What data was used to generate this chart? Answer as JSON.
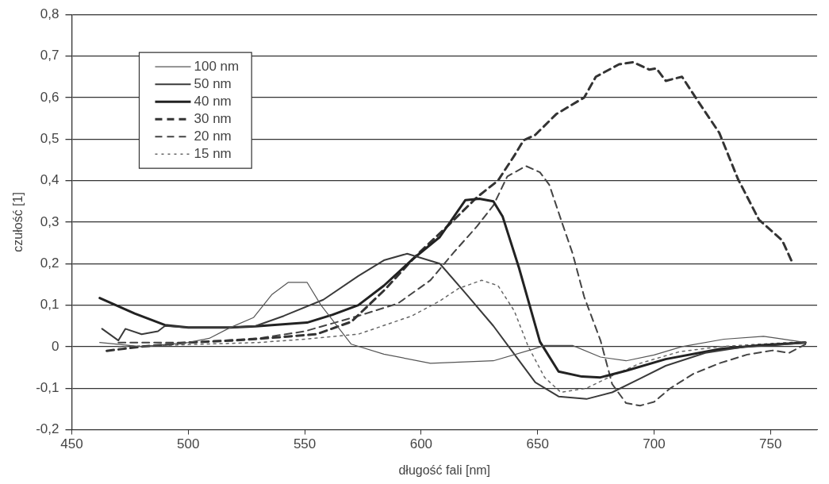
{
  "chart_data": {
    "type": "line",
    "xlabel": "długość fali [nm]",
    "ylabel": "czułość [1]",
    "xlim": [
      450,
      770
    ],
    "xticks": [
      450,
      500,
      550,
      600,
      650,
      700,
      750
    ],
    "ylim": [
      -0.2,
      0.8
    ],
    "yticks": [
      {
        "value": -0.2,
        "label": "-0,2"
      },
      {
        "value": -0.1,
        "label": "-0,1"
      },
      0,
      {
        "value": 0.1,
        "label": "0,1"
      },
      {
        "value": 0.2,
        "label": "0,2"
      },
      {
        "value": 0.3,
        "label": "0,3"
      },
      {
        "value": 0.4,
        "label": "0,4"
      },
      {
        "value": 0.5,
        "label": "0,5"
      },
      {
        "value": 0.6,
        "label": "0,6"
      },
      {
        "value": 0.7,
        "label": "0,7"
      },
      {
        "value": 0.8,
        "label": "0,8"
      }
    ],
    "grid": "y",
    "legend": "top left",
    "marker": "none",
    "series": [
      {
        "name": "100 nm",
        "color": "#555555",
        "line_style": "solid",
        "x": [
          462,
          480,
          500,
          509,
          518,
          528,
          536,
          543,
          551,
          557,
          570,
          584,
          604,
          631,
          648,
          653,
          665,
          677,
          688,
          700,
          712,
          730,
          747,
          753,
          765
        ],
        "values": [
          0.01,
          0.0,
          0.01,
          0.02,
          0.046,
          0.07,
          0.126,
          0.155,
          0.155,
          0.1,
          0.006,
          -0.018,
          -0.04,
          -0.034,
          -0.006,
          0.003,
          0.003,
          -0.025,
          -0.034,
          -0.02,
          0.0,
          0.018,
          0.025,
          0.02,
          0.01
        ]
      },
      {
        "name": "50 nm",
        "color": "#3a3a3a",
        "line_style": "solid",
        "x": [
          463,
          470,
          473,
          480,
          487,
          490,
          500,
          518,
          529,
          541,
          558,
          573,
          584,
          594,
          608,
          619,
          631,
          640,
          649,
          659,
          671,
          682,
          694,
          705,
          722,
          739,
          751,
          765
        ],
        "values": [
          0.043,
          0.015,
          0.043,
          0.03,
          0.037,
          0.05,
          0.046,
          0.046,
          0.05,
          0.074,
          0.113,
          0.17,
          0.208,
          0.224,
          0.2,
          0.129,
          0.05,
          -0.018,
          -0.086,
          -0.12,
          -0.126,
          -0.11,
          -0.077,
          -0.046,
          -0.015,
          0.0,
          0.003,
          0.01
        ]
      },
      {
        "name": "40 nm",
        "color": "#222222",
        "line_style": "solid",
        "x": [
          462,
          477,
          490,
          500,
          518,
          529,
          551,
          562,
          573,
          584,
          596,
          608,
          619,
          625,
          631,
          635,
          642,
          651,
          659,
          669,
          677,
          688,
          705,
          728,
          745,
          765
        ],
        "values": [
          0.117,
          0.08,
          0.052,
          0.046,
          0.046,
          0.049,
          0.058,
          0.077,
          0.1,
          0.147,
          0.209,
          0.264,
          0.353,
          0.356,
          0.35,
          0.313,
          0.19,
          0.012,
          -0.06,
          -0.072,
          -0.074,
          -0.058,
          -0.03,
          -0.006,
          0.003,
          0.01
        ]
      },
      {
        "name": "30 nm",
        "color": "#333333",
        "line_style": "dashed",
        "x": [
          465,
          480,
          500,
          520,
          535,
          555,
          570,
          584,
          598,
          612,
          624,
          633,
          640,
          644,
          649,
          658,
          670,
          675,
          685,
          691,
          698,
          701,
          705,
          712,
          719,
          728,
          736,
          745,
          755,
          759
        ],
        "values": [
          -0.01,
          0.0,
          0.01,
          0.015,
          0.021,
          0.03,
          0.06,
          0.135,
          0.22,
          0.294,
          0.36,
          0.4,
          0.46,
          0.497,
          0.51,
          0.56,
          0.6,
          0.65,
          0.68,
          0.685,
          0.667,
          0.67,
          0.64,
          0.65,
          0.59,
          0.515,
          0.404,
          0.306,
          0.256,
          0.207
        ]
      },
      {
        "name": "20 nm",
        "color": "#444444",
        "line_style": "dashed",
        "x": [
          470,
          500,
          530,
          550,
          573,
          590,
          604,
          614,
          624,
          631,
          637,
          645,
          651,
          655,
          661,
          665,
          670,
          677,
          682,
          688,
          694,
          700,
          707,
          717,
          728,
          740,
          751,
          758,
          765
        ],
        "values": [
          0.01,
          0.01,
          0.02,
          0.037,
          0.074,
          0.104,
          0.16,
          0.227,
          0.29,
          0.34,
          0.41,
          0.435,
          0.42,
          0.39,
          0.29,
          0.225,
          0.12,
          0.015,
          -0.09,
          -0.136,
          -0.142,
          -0.133,
          -0.1,
          -0.065,
          -0.04,
          -0.019,
          -0.009,
          -0.015,
          0.006
        ]
      },
      {
        "name": "15 nm",
        "color": "#666666",
        "line_style": "dotted",
        "x": [
          470,
          500,
          530,
          550,
          573,
          596,
          608,
          616,
          626,
          633,
          640,
          646,
          653,
          660,
          671,
          682,
          694,
          711,
          728,
          745,
          765
        ],
        "values": [
          0.0,
          0.005,
          0.01,
          0.018,
          0.03,
          0.074,
          0.11,
          0.14,
          0.16,
          0.147,
          0.086,
          0.0,
          -0.074,
          -0.11,
          -0.1,
          -0.07,
          -0.04,
          -0.012,
          0.0,
          0.006,
          0.012
        ]
      }
    ]
  }
}
